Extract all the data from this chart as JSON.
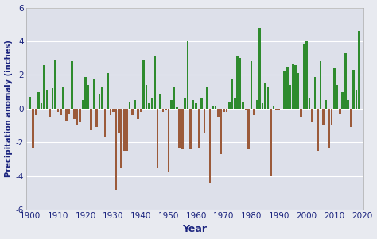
{
  "years": [
    1900,
    1901,
    1902,
    1903,
    1904,
    1905,
    1906,
    1907,
    1908,
    1909,
    1910,
    1911,
    1912,
    1913,
    1914,
    1915,
    1916,
    1917,
    1918,
    1919,
    1920,
    1921,
    1922,
    1923,
    1924,
    1925,
    1926,
    1927,
    1928,
    1929,
    1930,
    1931,
    1932,
    1933,
    1934,
    1935,
    1936,
    1937,
    1938,
    1939,
    1940,
    1941,
    1942,
    1943,
    1944,
    1945,
    1946,
    1947,
    1948,
    1949,
    1950,
    1951,
    1952,
    1953,
    1954,
    1955,
    1956,
    1957,
    1958,
    1959,
    1960,
    1961,
    1962,
    1963,
    1964,
    1965,
    1966,
    1967,
    1968,
    1969,
    1970,
    1971,
    1972,
    1973,
    1974,
    1975,
    1976,
    1977,
    1978,
    1979,
    1980,
    1981,
    1982,
    1983,
    1984,
    1985,
    1986,
    1987,
    1988,
    1989,
    1990,
    1991,
    1992,
    1993,
    1994,
    1995,
    1996,
    1997,
    1998,
    1999,
    2000,
    2001,
    2002,
    2003,
    2004,
    2005,
    2006,
    2007,
    2008,
    2009,
    2010,
    2011,
    2012,
    2013,
    2014,
    2015,
    2016,
    2017,
    2018,
    2019
  ],
  "values": [
    0.7,
    -2.3,
    -0.4,
    1.0,
    0.3,
    2.6,
    1.1,
    -0.5,
    1.2,
    2.9,
    -0.2,
    -0.4,
    1.3,
    -0.7,
    -0.3,
    2.8,
    -0.6,
    -1.0,
    -0.8,
    0.5,
    1.9,
    1.4,
    -1.3,
    1.8,
    -1.1,
    0.9,
    1.3,
    -1.7,
    2.1,
    -0.4,
    -0.2,
    -4.8,
    -1.4,
    -3.5,
    -2.5,
    -2.5,
    0.4,
    -0.4,
    0.5,
    -0.6,
    -0.2,
    2.9,
    1.4,
    0.3,
    0.6,
    3.1,
    -3.5,
    0.9,
    -0.2,
    -0.1,
    -3.8,
    0.5,
    1.3,
    0.1,
    -2.3,
    -2.4,
    0.6,
    4.0,
    -2.4,
    0.5,
    0.3,
    -2.3,
    0.6,
    -1.4,
    1.3,
    -4.4,
    0.2,
    0.2,
    -0.5,
    -2.7,
    -0.2,
    -0.2,
    0.4,
    1.8,
    0.6,
    3.1,
    3.0,
    0.4,
    -0.1,
    -2.4,
    2.8,
    -0.4,
    0.5,
    4.8,
    0.3,
    1.5,
    1.3,
    -4.0,
    0.2,
    -0.1,
    -0.1,
    0.0,
    2.2,
    2.5,
    1.4,
    2.7,
    2.6,
    2.1,
    -0.5,
    3.8,
    4.0,
    0.6,
    -0.8,
    1.9,
    -2.5,
    2.8,
    -1.0,
    0.5,
    -2.3,
    -1.0,
    2.4,
    1.4,
    -0.3,
    1.0,
    3.3,
    0.5,
    -1.1,
    2.3,
    1.1,
    4.6
  ],
  "pos_color": "#2e8b2e",
  "neg_color": "#9b5a3a",
  "background_color": "#e8eaf0",
  "axes_background": "#dde0ea",
  "grid_color": "#ffffff",
  "ylabel": "Precipitation anomaly (inches)",
  "xlabel": "Year",
  "ylim": [
    -6,
    6
  ],
  "yticks": [
    -6,
    -4,
    -2,
    0,
    2,
    4,
    6
  ],
  "xticks": [
    1900,
    1910,
    1920,
    1930,
    1940,
    1950,
    1960,
    1970,
    1980,
    1990,
    2000,
    2010,
    2020
  ],
  "bar_width": 0.75,
  "label_color": "#1a237e",
  "tick_color": "#1a237e",
  "spine_color": "#aaaaaa",
  "tick_fontsize": 7.5,
  "ylabel_fontsize": 7.2,
  "xlabel_fontsize": 9.0
}
